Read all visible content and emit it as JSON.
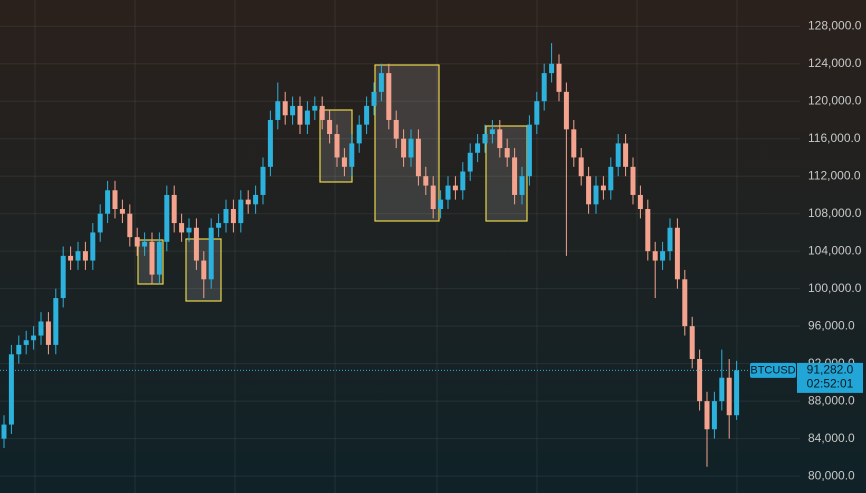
{
  "chart_data": {
    "type": "candlestick",
    "symbol": "BTCUSD",
    "last_price": {
      "value": 91282,
      "label": "91,282.0"
    },
    "countdown": "02:52:01",
    "up_color": "#2cb2dc",
    "down_color": "#f4a38e",
    "grid": true,
    "ylim": [
      78200,
      130800
    ],
    "yticks": [
      {
        "value": 80000,
        "label": "80,000.0"
      },
      {
        "value": 84000,
        "label": "84,000.0"
      },
      {
        "value": 88000,
        "label": "88,000.0"
      },
      {
        "value": 92000,
        "label": "92,000.0"
      },
      {
        "value": 96000,
        "label": "96,000.0"
      },
      {
        "value": 100000,
        "label": "100,000.0"
      },
      {
        "value": 104000,
        "label": "104,000.0"
      },
      {
        "value": 108000,
        "label": "108,000.0"
      },
      {
        "value": 112000,
        "label": "112,000.0"
      },
      {
        "value": 116000,
        "label": "116,000.0"
      },
      {
        "value": 120000,
        "label": "120,000.0"
      },
      {
        "value": 124000,
        "label": "124,000.0"
      },
      {
        "value": 128000,
        "label": "128,000.0"
      }
    ],
    "open": [
      84000,
      85500,
      93000,
      94000,
      94500,
      95000,
      96500,
      94000,
      99000,
      103500,
      103000,
      104000,
      103000,
      106000,
      108000,
      110500,
      108500,
      108000,
      105500,
      104500,
      105000,
      101500,
      105000,
      110000,
      107000,
      106000,
      106500,
      103000,
      101000,
      106500,
      107000,
      108500,
      107000,
      109500,
      109000,
      110000,
      113000,
      118000,
      120000,
      118500,
      119500,
      117500,
      119000,
      119500,
      118000,
      116500,
      114000,
      113000,
      115500,
      117500,
      119500,
      121000,
      123000,
      118000,
      116000,
      114000,
      116000,
      112000,
      111000,
      108500,
      109500,
      111000,
      110500,
      112500,
      114500,
      115500,
      116500,
      117000,
      115000,
      114000,
      110000,
      112000,
      117500,
      120000,
      123000,
      124000,
      121000,
      117000,
      114000,
      112000,
      109000,
      111000,
      110500,
      113000,
      115500,
      113000,
      110000,
      108500,
      104000,
      103000,
      104000,
      106500,
      101000,
      96000,
      92500,
      88000,
      85000,
      88000,
      90500,
      86500
    ],
    "high": [
      86500,
      94000,
      95000,
      95500,
      96000,
      97500,
      97500,
      100000,
      104500,
      104500,
      105000,
      105000,
      107000,
      109000,
      111500,
      111500,
      109500,
      109000,
      106500,
      106000,
      106000,
      106000,
      111000,
      111000,
      108000,
      107500,
      107500,
      104000,
      107500,
      108000,
      109500,
      109500,
      110500,
      110500,
      111000,
      114000,
      119000,
      122000,
      121000,
      120500,
      120500,
      120000,
      120500,
      120500,
      119000,
      117500,
      115000,
      116500,
      118500,
      120500,
      122000,
      124000,
      124000,
      119000,
      117000,
      117000,
      117000,
      113000,
      112000,
      110500,
      112000,
      112000,
      113500,
      115500,
      116500,
      117500,
      118000,
      118000,
      116000,
      115000,
      113000,
      118500,
      121000,
      124000,
      126200,
      125000,
      122000,
      118000,
      115000,
      113000,
      112000,
      112000,
      114000,
      116500,
      116500,
      114000,
      111000,
      109500,
      105000,
      105000,
      107500,
      107500,
      102000,
      97000,
      93500,
      89000,
      89000,
      93500,
      92500,
      92300
    ],
    "low": [
      83000,
      84500,
      92000,
      93000,
      93500,
      94000,
      93000,
      93000,
      98000,
      102000,
      102000,
      102000,
      102000,
      105000,
      107000,
      107500,
      107000,
      104500,
      103500,
      103500,
      100500,
      100500,
      104000,
      106000,
      105000,
      105000,
      102000,
      99000,
      100000,
      105500,
      106000,
      106000,
      106000,
      108000,
      108000,
      109000,
      112000,
      117000,
      117500,
      117500,
      116500,
      116500,
      118000,
      117000,
      115500,
      113000,
      112000,
      112000,
      114500,
      116500,
      118500,
      120000,
      117000,
      115000,
      113000,
      113000,
      111000,
      110000,
      107500,
      107500,
      108500,
      109500,
      109500,
      111500,
      113500,
      114500,
      115500,
      114000,
      113000,
      109000,
      109000,
      111000,
      116500,
      119000,
      122000,
      120000,
      103500,
      113000,
      111000,
      108000,
      108000,
      109500,
      109500,
      112000,
      112000,
      109000,
      107500,
      103000,
      99000,
      102000,
      103000,
      100000,
      95000,
      91500,
      87000,
      81000,
      84000,
      87000,
      84000,
      86000
    ],
    "close": [
      85500,
      93000,
      94000,
      94500,
      95000,
      96500,
      94000,
      99000,
      103500,
      103000,
      104000,
      103000,
      106000,
      108000,
      110500,
      108500,
      108000,
      105500,
      104500,
      105000,
      101500,
      105000,
      110000,
      107000,
      106000,
      106500,
      103000,
      101000,
      106500,
      107000,
      108500,
      107000,
      109500,
      109000,
      110000,
      113000,
      118000,
      120000,
      118500,
      119500,
      117500,
      119000,
      119500,
      118000,
      116500,
      114000,
      113000,
      115500,
      117500,
      119500,
      121000,
      123000,
      118000,
      116000,
      114000,
      116000,
      112000,
      111000,
      108500,
      109500,
      111000,
      110500,
      112500,
      114500,
      115500,
      116500,
      117000,
      115000,
      114000,
      110000,
      112000,
      117500,
      120000,
      123000,
      124000,
      121000,
      117000,
      114000,
      112000,
      109000,
      111000,
      110500,
      113000,
      115500,
      113000,
      110000,
      108500,
      104000,
      103000,
      104000,
      106500,
      101000,
      96000,
      92500,
      88000,
      85000,
      88000,
      90500,
      86500,
      91282
    ]
  }
}
